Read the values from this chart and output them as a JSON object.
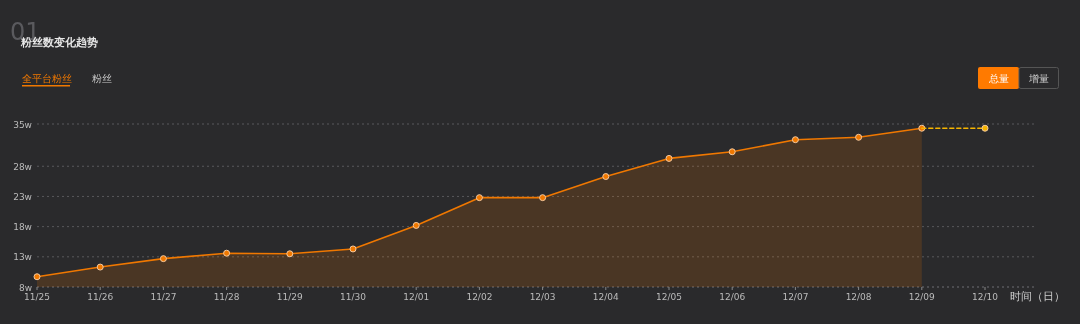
{
  "chart_data": {
    "type": "line",
    "title": "粉丝数变化趋势",
    "xlabel": "时间（日）",
    "annotations": [
      "01",
      "全平台粉丝",
      "粉丝",
      "总量",
      "增量"
    ],
    "categories": [
      "11/25",
      "11/26",
      "11/27",
      "11/28",
      "11/29",
      "11/30",
      "12/01",
      "12/02",
      "12/03",
      "12/04",
      "12/05",
      "12/06",
      "12/07",
      "12/08",
      "12/09",
      "12/10"
    ],
    "series": [
      {
        "type": "area",
        "color": "#f07800",
        "line_style": "solid",
        "values": [
          9.7,
          11.3,
          12.7,
          13.6,
          13.5,
          14.3,
          18.2,
          22.8,
          22.8,
          26.3,
          29.3,
          30.4,
          32.4,
          32.8,
          34.3,
          null
        ]
      },
      {
        "type": "line",
        "color": "#f5b400",
        "line_style": "dashed",
        "values": [
          null,
          null,
          null,
          null,
          null,
          null,
          null,
          null,
          null,
          null,
          null,
          null,
          null,
          null,
          34.3,
          34.3
        ]
      }
    ],
    "ylim": [
      8,
      35
    ],
    "yticks": [
      {
        "value": 8,
        "label": "8w"
      },
      {
        "value": 13,
        "label": "13w"
      },
      {
        "value": 18,
        "label": "18w"
      },
      {
        "value": 23,
        "label": "23w"
      },
      {
        "value": 28,
        "label": "28w"
      },
      {
        "value": 35,
        "label": "35w"
      }
    ],
    "grid": "y",
    "marker": "circle"
  }
}
